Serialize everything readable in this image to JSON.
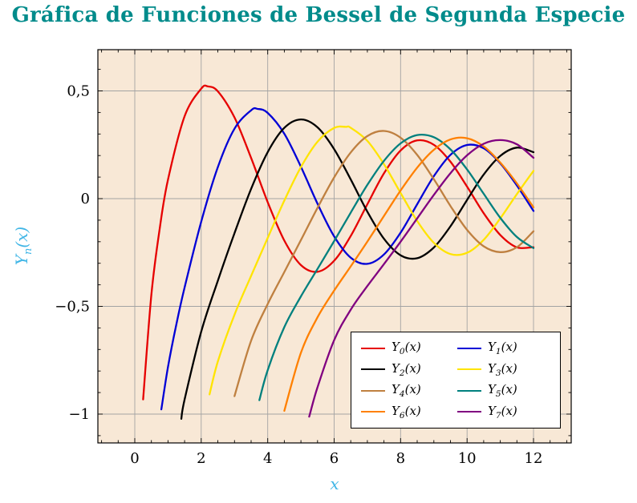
{
  "title": {
    "text": "Gráfica de Funciones de Bessel de Segunda Especie",
    "color": "#008b8b"
  },
  "axes": {
    "x_label": "x",
    "y_label_base": "Y",
    "y_label_sub": "n",
    "y_label_rest": "(x)",
    "label_color": "#41b6e6",
    "x_ticks": [
      {
        "v": 0,
        "label": "0"
      },
      {
        "v": 2,
        "label": "2"
      },
      {
        "v": 4,
        "label": "4"
      },
      {
        "v": 6,
        "label": "6"
      },
      {
        "v": 8,
        "label": "8"
      },
      {
        "v": 10,
        "label": "10"
      },
      {
        "v": 12,
        "label": "12"
      }
    ],
    "y_ticks": [
      {
        "v": 0.5,
        "label": "0,5"
      },
      {
        "v": 0,
        "label": "0"
      },
      {
        "v": -0.5,
        "label": "−0,5"
      },
      {
        "v": -1,
        "label": "−1"
      }
    ]
  },
  "chart_data": {
    "type": "line",
    "title": "Gráfica de Funciones de Bessel de Segunda Especie",
    "xlabel": "x",
    "ylabel": "Yn(x)",
    "xlim": [
      -1.1,
      13.1
    ],
    "ylim": [
      -1.13,
      0.69
    ],
    "grid": true,
    "legend_position": "bottom-right",
    "background": "#f8e8d6",
    "grid_color": "#a3a3a3",
    "series": [
      {
        "name": "Y0(x)",
        "label_base": "Y",
        "label_sub": "0",
        "label_rest": "(x)",
        "color": "#e60000",
        "points": [
          [
            0.25,
            -0.932
          ],
          [
            0.5,
            -0.4445
          ],
          [
            0.75,
            -0.1386
          ],
          [
            1,
            0.0883
          ],
          [
            1.5,
            0.3824
          ],
          [
            2,
            0.5104
          ],
          [
            2.2,
            0.5208
          ],
          [
            2.5,
            0.4981
          ],
          [
            3,
            0.3769
          ],
          [
            3.5,
            0.189
          ],
          [
            4,
            -0.0169
          ],
          [
            4.5,
            -0.1947
          ],
          [
            5,
            -0.3085
          ],
          [
            5.5,
            -0.3395
          ],
          [
            6,
            -0.2882
          ],
          [
            6.5,
            -0.1732
          ],
          [
            7,
            -0.0259
          ],
          [
            7.5,
            0.1173
          ],
          [
            8,
            0.2235
          ],
          [
            8.5,
            0.2702
          ],
          [
            9,
            0.2499
          ],
          [
            9.5,
            0.1712
          ],
          [
            10,
            0.0557
          ],
          [
            10.5,
            -0.0675
          ],
          [
            11,
            -0.1688
          ],
          [
            11.5,
            -0.2261
          ],
          [
            12,
            -0.2252
          ]
        ]
      },
      {
        "name": "Y1(x)",
        "label_base": "Y",
        "label_sub": "1",
        "label_rest": "(x)",
        "color": "#0000d6",
        "points": [
          [
            0.8,
            -0.978
          ],
          [
            1,
            -0.7812
          ],
          [
            1.25,
            -0.584
          ],
          [
            1.5,
            -0.4123
          ],
          [
            2,
            -0.107
          ],
          [
            2.5,
            0.1459
          ],
          [
            3,
            0.3247
          ],
          [
            3.5,
            0.4102
          ],
          [
            3.7,
            0.4165
          ],
          [
            4,
            0.3979
          ],
          [
            4.5,
            0.301
          ],
          [
            5,
            0.1479
          ],
          [
            5.5,
            -0.0238
          ],
          [
            6,
            -0.175
          ],
          [
            6.5,
            -0.2741
          ],
          [
            7,
            -0.3027
          ],
          [
            7.5,
            -0.2591
          ],
          [
            8,
            -0.1581
          ],
          [
            8.5,
            -0.0262
          ],
          [
            9,
            0.1043
          ],
          [
            9.5,
            0.2032
          ],
          [
            10,
            0.249
          ],
          [
            10.5,
            0.2337
          ],
          [
            11,
            0.1637
          ],
          [
            11.5,
            0.061
          ],
          [
            12,
            -0.0571
          ]
        ]
      },
      {
        "name": "Y2(x)",
        "label_base": "Y",
        "label_sub": "2",
        "label_rest": "(x)",
        "color": "#000000",
        "points": [
          [
            1.4,
            -1.022
          ],
          [
            1.5,
            -0.9321
          ],
          [
            2,
            -0.6174
          ],
          [
            2.5,
            -0.3814
          ],
          [
            3,
            -0.1604
          ],
          [
            3.5,
            0.0454
          ],
          [
            4,
            0.2159
          ],
          [
            4.5,
            0.3285
          ],
          [
            5,
            0.3677
          ],
          [
            5.5,
            0.3308
          ],
          [
            6,
            0.2299
          ],
          [
            6.5,
            0.0889
          ],
          [
            7,
            -0.0606
          ],
          [
            7.5,
            -0.1864
          ],
          [
            8,
            -0.263
          ],
          [
            8.5,
            -0.2764
          ],
          [
            9,
            -0.2267
          ],
          [
            9.5,
            -0.1284
          ],
          [
            10,
            -0.0059
          ],
          [
            10.5,
            0.112
          ],
          [
            11,
            0.1986
          ],
          [
            11.5,
            0.2367
          ],
          [
            12,
            0.2157
          ]
        ]
      },
      {
        "name": "Y3(x)",
        "label_base": "Y",
        "label_sub": "3",
        "label_rest": "(x)",
        "color": "#ffe400",
        "points": [
          [
            2.25,
            -0.9084
          ],
          [
            2.5,
            -0.7561
          ],
          [
            3,
            -0.5386
          ],
          [
            3.5,
            -0.3583
          ],
          [
            4,
            -0.182
          ],
          [
            4.5,
            -0.009
          ],
          [
            5,
            0.1463
          ],
          [
            5.5,
            0.2644
          ],
          [
            6,
            0.3283
          ],
          [
            6.35,
            0.3329
          ],
          [
            6.5,
            0.3288
          ],
          [
            7,
            0.2681
          ],
          [
            7.5,
            0.1597
          ],
          [
            8,
            0.0266
          ],
          [
            8.5,
            -0.1039
          ],
          [
            9,
            -0.2051
          ],
          [
            9.5,
            -0.2573
          ],
          [
            10,
            -0.2514
          ],
          [
            10.5,
            -0.191
          ],
          [
            11,
            -0.0915
          ],
          [
            11.5,
            0.0213
          ],
          [
            12,
            0.129
          ]
        ]
      },
      {
        "name": "Y4(x)",
        "label_base": "Y",
        "label_sub": "4",
        "label_rest": "(x)",
        "color": "#bf8040",
        "points": [
          [
            3,
            -0.9168
          ],
          [
            3.5,
            -0.6596
          ],
          [
            4,
            -0.4889
          ],
          [
            4.5,
            -0.3405
          ],
          [
            5,
            -0.1921
          ],
          [
            5.5,
            -0.0424
          ],
          [
            6,
            0.0984
          ],
          [
            6.5,
            0.2146
          ],
          [
            7,
            0.2904
          ],
          [
            7.5,
            0.3142
          ],
          [
            8,
            0.283
          ],
          [
            8.5,
            0.2031
          ],
          [
            9,
            0.09
          ],
          [
            9.5,
            -0.0341
          ],
          [
            10,
            -0.1449
          ],
          [
            10.5,
            -0.2211
          ],
          [
            11,
            -0.2485
          ],
          [
            11.5,
            -0.2256
          ],
          [
            12,
            -0.1512
          ]
        ]
      },
      {
        "name": "Y5(x)",
        "label_base": "Y",
        "label_sub": "5",
        "label_rest": "(x)",
        "color": "#00807e",
        "points": [
          [
            3.75,
            -0.9353
          ],
          [
            4,
            -0.7958
          ],
          [
            4.5,
            -0.5963
          ],
          [
            5,
            -0.4537
          ],
          [
            5.5,
            -0.3261
          ],
          [
            6,
            -0.1971
          ],
          [
            6.5,
            -0.0647
          ],
          [
            7,
            0.0638
          ],
          [
            7.5,
            0.1754
          ],
          [
            8,
            0.2564
          ],
          [
            8.5,
            0.295
          ],
          [
            9,
            0.2851
          ],
          [
            9.5,
            0.2286
          ],
          [
            10,
            0.1355
          ],
          [
            10.5,
            0.0225
          ],
          [
            11,
            -0.0892
          ],
          [
            11.5,
            -0.1782
          ],
          [
            12,
            -0.2298
          ]
        ]
      },
      {
        "name": "Y6(x)",
        "label_base": "Y",
        "label_sub": "6",
        "label_rest": "(x)",
        "color": "#ff8000",
        "points": [
          [
            4.5,
            -0.9846
          ],
          [
            5,
            -0.7153
          ],
          [
            5.5,
            -0.5505
          ],
          [
            6,
            -0.4269
          ],
          [
            6.5,
            -0.3141
          ],
          [
            7,
            -0.1993
          ],
          [
            7.5,
            -0.0803
          ],
          [
            8,
            0.0375
          ],
          [
            8.5,
            0.144
          ],
          [
            9,
            0.2268
          ],
          [
            9.5,
            0.2747
          ],
          [
            10,
            0.2804
          ],
          [
            10.5,
            0.2425
          ],
          [
            11,
            0.1674
          ],
          [
            11.5,
            0.0706
          ],
          [
            12,
            -0.0403
          ]
        ]
      },
      {
        "name": "Y7(x)",
        "label_base": "Y",
        "label_sub": "7",
        "label_rest": "(x)",
        "color": "#800080",
        "points": [
          [
            5.25,
            -1.012
          ],
          [
            5.5,
            -0.875
          ],
          [
            6,
            -0.6567
          ],
          [
            6.5,
            -0.5152
          ],
          [
            7,
            -0.4055
          ],
          [
            7.5,
            -0.3039
          ],
          [
            8,
            -0.2001
          ],
          [
            8.5,
            -0.0917
          ],
          [
            9,
            0.0173
          ],
          [
            9.5,
            0.1184
          ],
          [
            10,
            0.201
          ],
          [
            10.5,
            0.2546
          ],
          [
            11,
            0.2718
          ],
          [
            11.5,
            0.2519
          ],
          [
            12,
            0.1895
          ]
        ]
      }
    ]
  },
  "legend": {
    "columns": 2
  }
}
